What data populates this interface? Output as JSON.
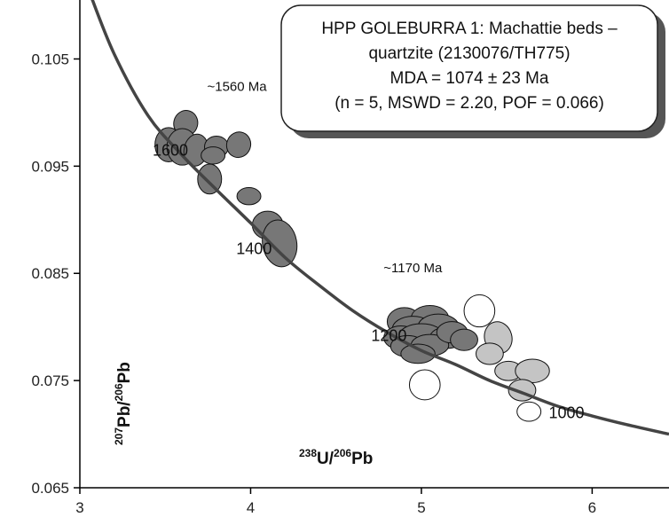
{
  "chart_data": {
    "type": "scatter",
    "title": "",
    "xlabel": {
      "sup1": "238",
      "base1": "U/",
      "sup2": "206",
      "base2": "Pb"
    },
    "ylabel": {
      "sup1": "207",
      "base1": "Pb/",
      "sup2": "206",
      "base2": "Pb"
    },
    "xlim": [
      3,
      6.45
    ],
    "ylim": [
      0.065,
      0.1105
    ],
    "xticks": [
      "3",
      "4",
      "5",
      "6"
    ],
    "yticks": [
      "0.065",
      "0.075",
      "0.085",
      "0.095",
      "0.105"
    ],
    "info_box": [
      "HPP GOLEBURRA 1: Machattie beds –",
      "quartzite (2130076/TH775)",
      "MDA = 1074 ± 23 Ma",
      "(n = 5, MSWD = 2.20, POF = 0.066)"
    ],
    "concordia_age_labels": [
      {
        "label": "1600",
        "x": 3.53,
        "y": 0.096
      },
      {
        "label": "1400",
        "x": 4.02,
        "y": 0.0868
      },
      {
        "label": "1200",
        "x": 4.81,
        "y": 0.0787
      },
      {
        "label": "1000",
        "x": 5.85,
        "y": 0.0715
      }
    ],
    "peak_annotations": [
      {
        "label": "~1560 Ma",
        "x": 3.92,
        "y": 0.102
      },
      {
        "label": "~1170 Ma",
        "x": 4.95,
        "y": 0.0851
      }
    ],
    "concordia_curve": [
      [
        3.05,
        0.1115
      ],
      [
        3.2,
        0.1055
      ],
      [
        3.4,
        0.0997
      ],
      [
        3.6,
        0.096
      ],
      [
        3.8,
        0.0928
      ],
      [
        4.0,
        0.0897
      ],
      [
        4.2,
        0.0865
      ],
      [
        4.4,
        0.0839
      ],
      [
        4.6,
        0.0815
      ],
      [
        4.8,
        0.0795
      ],
      [
        5.0,
        0.0778
      ],
      [
        5.2,
        0.0765
      ],
      [
        5.4,
        0.075
      ],
      [
        5.6,
        0.0738
      ],
      [
        5.8,
        0.0726
      ],
      [
        6.0,
        0.0717
      ],
      [
        6.2,
        0.0709
      ],
      [
        6.45,
        0.07
      ]
    ],
    "ellipses": [
      {
        "x": 3.62,
        "y": 0.099,
        "rx": 0.07,
        "ry": 0.0012,
        "rot": 15,
        "fill": "dark"
      },
      {
        "x": 3.52,
        "y": 0.097,
        "rx": 0.08,
        "ry": 0.0016,
        "rot": 0,
        "fill": "dark"
      },
      {
        "x": 3.6,
        "y": 0.0968,
        "rx": 0.09,
        "ry": 0.0017,
        "rot": 0,
        "fill": "dark"
      },
      {
        "x": 3.68,
        "y": 0.0965,
        "rx": 0.07,
        "ry": 0.0015,
        "rot": 10,
        "fill": "dark"
      },
      {
        "x": 3.8,
        "y": 0.0968,
        "rx": 0.07,
        "ry": 0.001,
        "rot": 0,
        "fill": "dark"
      },
      {
        "x": 3.93,
        "y": 0.097,
        "rx": 0.07,
        "ry": 0.0012,
        "rot": 20,
        "fill": "dark"
      },
      {
        "x": 3.78,
        "y": 0.096,
        "rx": 0.07,
        "ry": 0.0008,
        "rot": 0,
        "fill": "dark"
      },
      {
        "x": 3.76,
        "y": 0.0938,
        "rx": 0.07,
        "ry": 0.0014,
        "rot": 0,
        "fill": "dark"
      },
      {
        "x": 3.99,
        "y": 0.0922,
        "rx": 0.07,
        "ry": 0.0008,
        "rot": 0,
        "fill": "dark"
      },
      {
        "x": 4.1,
        "y": 0.0895,
        "rx": 0.09,
        "ry": 0.0013,
        "rot": 0,
        "fill": "dark"
      },
      {
        "x": 4.17,
        "y": 0.0878,
        "rx": 0.1,
        "ry": 0.0022,
        "rot": -10,
        "fill": "dark"
      },
      {
        "x": 4.9,
        "y": 0.0805,
        "rx": 0.1,
        "ry": 0.0013,
        "rot": 0,
        "fill": "dark"
      },
      {
        "x": 5.05,
        "y": 0.0808,
        "rx": 0.11,
        "ry": 0.0012,
        "rot": 0,
        "fill": "dark"
      },
      {
        "x": 4.95,
        "y": 0.0798,
        "rx": 0.12,
        "ry": 0.0012,
        "rot": 0,
        "fill": "dark"
      },
      {
        "x": 5.1,
        "y": 0.08,
        "rx": 0.12,
        "ry": 0.0012,
        "rot": 0,
        "fill": "dark"
      },
      {
        "x": 4.88,
        "y": 0.079,
        "rx": 0.1,
        "ry": 0.0011,
        "rot": 0,
        "fill": "dark"
      },
      {
        "x": 5.0,
        "y": 0.0792,
        "rx": 0.13,
        "ry": 0.0011,
        "rot": 0,
        "fill": "dark"
      },
      {
        "x": 5.15,
        "y": 0.079,
        "rx": 0.1,
        "ry": 0.001,
        "rot": 0,
        "fill": "dark"
      },
      {
        "x": 4.92,
        "y": 0.0782,
        "rx": 0.1,
        "ry": 0.001,
        "rot": 0,
        "fill": "dark"
      },
      {
        "x": 5.05,
        "y": 0.0783,
        "rx": 0.11,
        "ry": 0.001,
        "rot": 0,
        "fill": "dark"
      },
      {
        "x": 5.18,
        "y": 0.0795,
        "rx": 0.09,
        "ry": 0.001,
        "rot": 0,
        "fill": "dark"
      },
      {
        "x": 4.98,
        "y": 0.0775,
        "rx": 0.1,
        "ry": 0.0009,
        "rot": 0,
        "fill": "dark"
      },
      {
        "x": 5.25,
        "y": 0.0788,
        "rx": 0.08,
        "ry": 0.001,
        "rot": 0,
        "fill": "dark"
      },
      {
        "x": 5.34,
        "y": 0.0815,
        "rx": 0.09,
        "ry": 0.0015,
        "rot": 0,
        "fill": "white"
      },
      {
        "x": 5.45,
        "y": 0.079,
        "rx": 0.08,
        "ry": 0.0015,
        "rot": -15,
        "fill": "light"
      },
      {
        "x": 5.4,
        "y": 0.0775,
        "rx": 0.08,
        "ry": 0.001,
        "rot": 0,
        "fill": "light"
      },
      {
        "x": 5.51,
        "y": 0.0759,
        "rx": 0.08,
        "ry": 0.0009,
        "rot": 0,
        "fill": "light"
      },
      {
        "x": 5.65,
        "y": 0.0759,
        "rx": 0.1,
        "ry": 0.0011,
        "rot": 0,
        "fill": "light"
      },
      {
        "x": 5.59,
        "y": 0.0741,
        "rx": 0.08,
        "ry": 0.001,
        "rot": 0,
        "fill": "light"
      },
      {
        "x": 5.63,
        "y": 0.0721,
        "rx": 0.07,
        "ry": 0.0009,
        "rot": 0,
        "fill": "white"
      },
      {
        "x": 5.02,
        "y": 0.0746,
        "rx": 0.09,
        "ry": 0.0014,
        "rot": 0,
        "fill": "white"
      }
    ],
    "grid": false,
    "legend": "none"
  }
}
